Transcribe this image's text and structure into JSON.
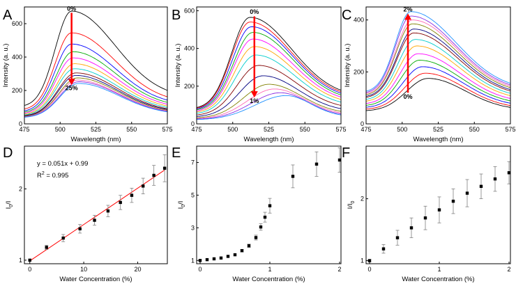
{
  "colors": {
    "spectra": [
      "#000000",
      "#ff0000",
      "#0000ff",
      "#00aa00",
      "#ff00ff",
      "#ffa500",
      "#00cccc",
      "#800000",
      "#000080",
      "#808000",
      "#ff69b4",
      "#8a2be2",
      "#1e90ff",
      "#228b22",
      "#b8860b",
      "#4169e1",
      "#dc143c"
    ],
    "arrow": "#ff0000",
    "fit": "#ff0000",
    "points": "#000000",
    "error": "#808080"
  },
  "chart_data": [
    {
      "panel": "A",
      "type": "line",
      "xlabel": "Wavelength (nm)",
      "ylabel": "Intensity (a. u.)",
      "xlim": [
        475,
        575
      ],
      "ylim": [
        0,
        700
      ],
      "xticks": [
        475,
        500,
        525,
        550,
        575
      ],
      "yticks": [
        0,
        200,
        400,
        600
      ],
      "peak_x": [
        508,
        508,
        508,
        509,
        509,
        510,
        510,
        511,
        511,
        512,
        512,
        513,
        513
      ],
      "peak_y": [
        675,
        545,
        478,
        432,
        395,
        360,
        330,
        305,
        290,
        275,
        262,
        252,
        242
      ],
      "tail_ratio": 0.23,
      "left_ratio": 0.15,
      "annotations": [
        {
          "text": "0%",
          "x": 508,
          "y": 690
        },
        {
          "text": "25%",
          "x": 508,
          "y": 215
        }
      ],
      "arrow": {
        "from": [
          508,
          665
        ],
        "to": [
          508,
          232
        ]
      }
    },
    {
      "panel": "B",
      "type": "line",
      "xlabel": "Wavelength (nm)",
      "ylabel": "Intensity (a. u.)",
      "xlim": [
        475,
        575
      ],
      "ylim": [
        0,
        620
      ],
      "xticks": [
        475,
        500,
        525,
        550,
        575
      ],
      "yticks": [
        0,
        200,
        400,
        600
      ],
      "peak_x": [
        512,
        512,
        513,
        514,
        514,
        515,
        516,
        518,
        521,
        525,
        529,
        533,
        537
      ],
      "peak_y": [
        565,
        540,
        515,
        485,
        450,
        410,
        365,
        310,
        255,
        210,
        185,
        165,
        150
      ],
      "tail_ratio": 0.25,
      "left_ratio": 0.14,
      "annotations": [
        {
          "text": "0%",
          "x": 515,
          "y": 595
        },
        {
          "text": "1%",
          "x": 515,
          "y": 122
        }
      ],
      "arrow": {
        "from": [
          515,
          570
        ],
        "to": [
          515,
          140
        ]
      }
    },
    {
      "panel": "C",
      "type": "line",
      "xlabel": "Wavelength (nm)",
      "ylabel": "Intensity (a. u.)",
      "xlim": [
        475,
        575
      ],
      "ylim": [
        0,
        450
      ],
      "xticks": [
        475,
        500,
        525,
        550,
        575
      ],
      "yticks": [
        0,
        200,
        400
      ],
      "peak_x": [
        518,
        516,
        514,
        512,
        511,
        510,
        509,
        508,
        508,
        507,
        507,
        506,
        506
      ],
      "peak_y": [
        175,
        195,
        220,
        245,
        270,
        300,
        325,
        350,
        365,
        385,
        400,
        415,
        432
      ],
      "tail_ratio": 0.3,
      "left_ratio": 0.28,
      "annotations": [
        {
          "text": "2%",
          "x": 504,
          "y": 440
        },
        {
          "text": "0%",
          "x": 504,
          "y": 105
        }
      ],
      "arrow": {
        "from": [
          504,
          120
        ],
        "to": [
          504,
          425
        ]
      }
    },
    {
      "panel": "D",
      "type": "scatter",
      "xlabel": "Water Concentration (%)",
      "ylabel_main": "I",
      "ylabel_sub": "0",
      "ylabel_tail": "/I",
      "xlim": [
        -1,
        25.5
      ],
      "ylim": [
        0.95,
        2.6
      ],
      "xticks": [
        0,
        10,
        20
      ],
      "yticks": [
        1,
        2
      ],
      "x": [
        0,
        3.1,
        6.2,
        9.3,
        12,
        14.5,
        16.8,
        18.9,
        21,
        23,
        25
      ],
      "y": [
        1.0,
        1.18,
        1.31,
        1.44,
        1.56,
        1.69,
        1.81,
        1.91,
        2.04,
        2.19,
        2.29
      ],
      "err": [
        0.01,
        0.03,
        0.05,
        0.06,
        0.07,
        0.08,
        0.1,
        0.1,
        0.11,
        0.14,
        0.19
      ],
      "fit": {
        "slope": 0.051,
        "intercept": 0.99,
        "x": [
          0,
          25
        ]
      },
      "equation": "y = 0.051x + 0.99",
      "r2_label": "R",
      "r2_sup": "2",
      "r2_value": " = 0.995"
    },
    {
      "panel": "E",
      "type": "scatter",
      "xlabel": "Water Concentration (%)",
      "ylabel_main": "I",
      "ylabel_sub": "0",
      "ylabel_tail": "/I",
      "xlim": [
        -0.05,
        2.02
      ],
      "ylim": [
        0.8,
        8.0
      ],
      "xticks": [
        0,
        1,
        2
      ],
      "yticks": [
        1,
        3,
        5,
        7
      ],
      "x": [
        0,
        0.1,
        0.2,
        0.3,
        0.4,
        0.5,
        0.6,
        0.7,
        0.8,
        0.87,
        0.93,
        1.0,
        1.33,
        1.67,
        2.0
      ],
      "y": [
        1.0,
        1.05,
        1.1,
        1.15,
        1.25,
        1.35,
        1.6,
        1.9,
        2.4,
        3.05,
        3.65,
        4.35,
        6.15,
        6.9,
        7.15
      ],
      "err": [
        0.02,
        0.02,
        0.03,
        0.03,
        0.05,
        0.06,
        0.08,
        0.1,
        0.15,
        0.2,
        0.3,
        0.45,
        0.7,
        0.75,
        0.75
      ]
    },
    {
      "panel": "F",
      "type": "scatter",
      "xlabel": "Water Concentration (%)",
      "ylabel_main": "I/I",
      "ylabel_sub": "0",
      "ylabel_tail": "",
      "xlim": [
        -0.05,
        2.02
      ],
      "ylim": [
        0.95,
        2.85
      ],
      "xticks": [
        0,
        1,
        2
      ],
      "yticks": [
        1,
        2
      ],
      "x": [
        0,
        0.2,
        0.4,
        0.6,
        0.8,
        1.0,
        1.2,
        1.4,
        1.6,
        1.8,
        2.0
      ],
      "y": [
        1.0,
        1.19,
        1.37,
        1.53,
        1.69,
        1.82,
        1.96,
        2.09,
        2.2,
        2.32,
        2.42
      ],
      "err": [
        0.02,
        0.07,
        0.12,
        0.16,
        0.19,
        0.21,
        0.2,
        0.22,
        0.2,
        0.2,
        0.18
      ]
    }
  ]
}
